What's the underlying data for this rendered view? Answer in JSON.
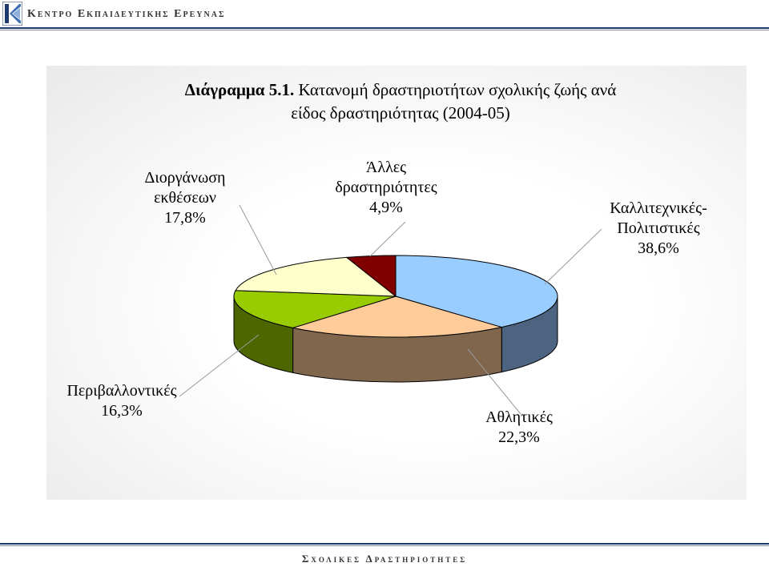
{
  "header": {
    "org_name": "Κεντρο Εκπαιδευτικησ Ερευνασ",
    "logo_icon": "kee-logo-icon"
  },
  "footer": {
    "section_name": "Σχολικεσ Δραστηριοτητεσ"
  },
  "chart_data": {
    "type": "pie",
    "title_bold": "Διάγραμμα 5.1.",
    "title_rest": " Κατανομή δραστηριοτήτων σχολικής ζωής ανά",
    "title_line2": "είδος δραστηριότητας (2004-05)",
    "three_d": true,
    "slices": [
      {
        "label_lines": [
          "Καλλιτεχνικές-",
          "Πολιτιστικές"
        ],
        "value": 38.6,
        "value_label": "38,6%",
        "color": "#99ccff",
        "side_color": "#4d6480"
      },
      {
        "label_lines": [
          "Αθλητικές"
        ],
        "value": 22.3,
        "value_label": "22,3%",
        "color": "#ffcc99",
        "side_color": "#80664d"
      },
      {
        "label_lines": [
          "Περιβαλλοντικές"
        ],
        "value": 16.3,
        "value_label": "16,3%",
        "color": "#99cc00",
        "side_color": "#4d6600"
      },
      {
        "label_lines": [
          "Διοργάνωση",
          "εκθέσεων"
        ],
        "value": 17.8,
        "value_label": "17,8%",
        "color": "#ffffcc",
        "side_color": "#808066"
      },
      {
        "label_lines": [
          "Άλλες",
          "δραστηριότητες"
        ],
        "value": 4.9,
        "value_label": "4,9%",
        "color": "#800000",
        "side_color": "#400000"
      }
    ]
  }
}
